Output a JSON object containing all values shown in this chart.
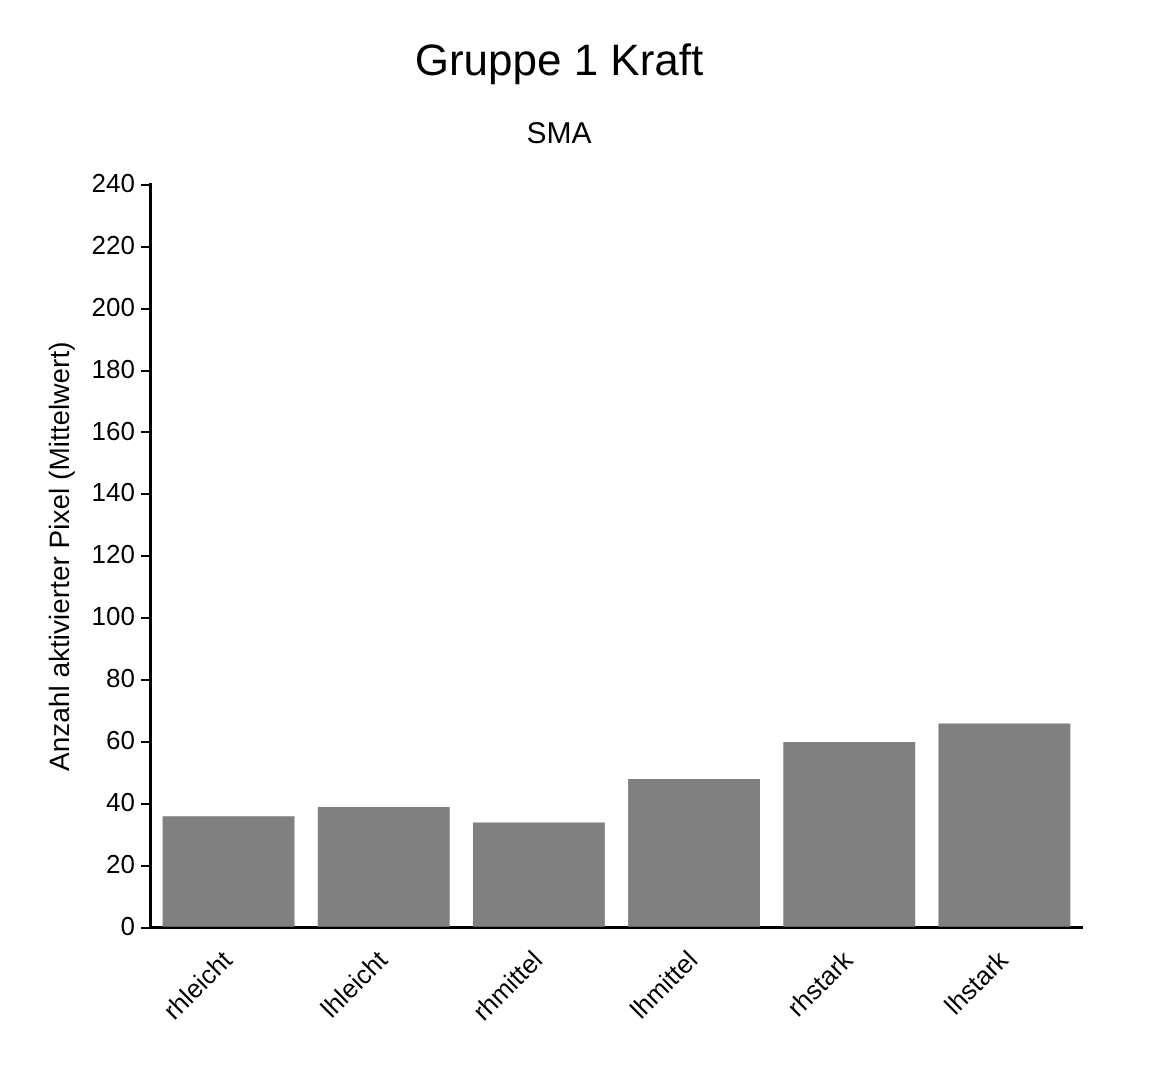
{
  "chart_data": {
    "type": "bar",
    "title": "Gruppe 1 Kraft",
    "subtitle": "SMA",
    "ylabel": "Anzahl aktivierter Pixel (Mittelwert)",
    "categories": [
      "rhleicht",
      "lhleicht",
      "rhmittel",
      "lhmittel",
      "rhstark",
      "lhstark"
    ],
    "values": [
      36,
      39,
      34,
      48,
      60,
      66
    ],
    "color": "#808080",
    "ylim": [
      0,
      240
    ],
    "yticks": [
      0,
      20,
      40,
      60,
      80,
      100,
      120,
      140,
      160,
      180,
      200,
      220,
      240
    ],
    "grid": false,
    "legend": false
  }
}
